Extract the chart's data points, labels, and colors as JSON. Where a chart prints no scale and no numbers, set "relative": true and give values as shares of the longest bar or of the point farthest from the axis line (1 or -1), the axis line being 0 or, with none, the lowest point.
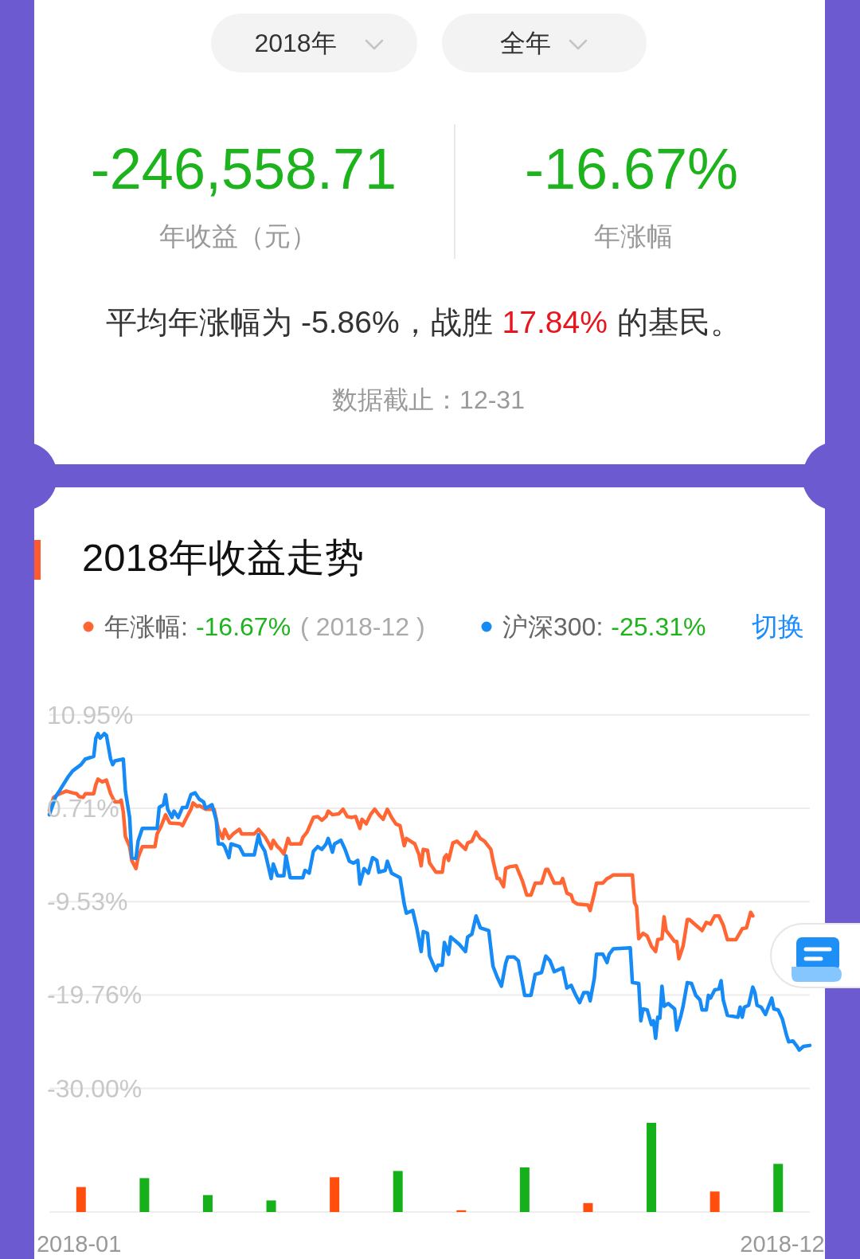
{
  "chart_data": [
    {
      "type": "other",
      "annotations": [
        "2018年",
        "全年",
        "-246,558.71",
        "年收益（元）",
        "-16.67%",
        "年涨幅",
        "平均年涨幅为 -5.86%，战胜",
        "17.84%",
        "的基民。",
        "数据截止：12-31"
      ]
    },
    {
      "type": "line",
      "title": "2018年收益走势",
      "xlim": [
        "2018-01-02",
        "2018-12-28"
      ],
      "ylim": [
        -30,
        10.95
      ],
      "xticks": [
        {
          "value": "2018-01-16",
          "label": "2018-01"
        },
        {
          "value": "2018-12-15",
          "label": "2018-12"
        }
      ],
      "yticks": [
        {
          "value": 10.95,
          "label": "10.95%"
        },
        {
          "value": 0.71,
          "label": "0.71%"
        },
        {
          "value": -9.53,
          "label": "-9.53%"
        },
        {
          "value": -19.76,
          "label": "-19.76%"
        },
        {
          "value": -30,
          "label": "-30.00%"
        }
      ],
      "grid": "y",
      "legend": "top",
      "annotations": [
        "-16.67%",
        "( 2018-12 )",
        "-25.31%",
        "切换"
      ],
      "series": [
        {
          "name": "年涨幅:",
          "color": "#ff6634",
          "x": [
            "2018-01-02",
            "2018-01-04",
            "2018-01-06",
            "2018-01-10",
            "2018-01-13",
            "2018-01-15",
            "2018-01-16",
            "2018-01-18",
            "2018-01-19",
            "2018-01-23",
            "2018-01-24",
            "2018-01-25",
            "2018-01-27",
            "2018-01-29",
            "2018-01-31",
            "2018-02-02",
            "2018-02-04",
            "2018-02-05",
            "2018-02-06",
            "2018-02-07",
            "2018-02-09",
            "2018-02-10",
            "2018-02-12",
            "2018-02-13",
            "2018-02-15",
            "2018-02-21",
            "2018-02-22",
            "2018-02-24",
            "2018-02-26",
            "2018-02-28",
            "2018-03-05",
            "2018-03-06",
            "2018-03-08",
            "2018-03-10",
            "2018-03-11",
            "2018-03-13",
            "2018-03-14",
            "2018-03-17",
            "2018-03-21",
            "2018-03-23",
            "2018-03-25",
            "2018-03-26",
            "2018-03-28",
            "2018-03-30",
            "2018-04-02",
            "2018-04-03",
            "2018-04-09",
            "2018-04-11",
            "2018-04-14",
            "2018-04-16",
            "2018-04-17",
            "2018-04-18",
            "2018-04-20",
            "2018-04-21",
            "2018-04-23",
            "2018-04-25",
            "2018-04-26",
            "2018-05-01",
            "2018-05-02",
            "2018-05-04",
            "2018-05-07",
            "2018-05-09",
            "2018-05-11",
            "2018-05-13",
            "2018-05-14",
            "2018-05-16",
            "2018-05-19",
            "2018-05-21",
            "2018-05-23",
            "2018-05-25",
            "2018-05-27",
            "2018-05-29",
            "2018-05-30",
            "2018-06-01",
            "2018-06-03",
            "2018-06-05",
            "2018-06-07",
            "2018-06-09",
            "2018-06-11",
            "2018-06-13",
            "2018-06-15",
            "2018-06-17",
            "2018-06-19",
            "2018-06-20",
            "2018-06-22",
            "2018-06-24",
            "2018-06-26",
            "2018-06-27",
            "2018-06-28",
            "2018-06-30",
            "2018-07-01",
            "2018-07-04",
            "2018-07-07",
            "2018-07-08",
            "2018-07-09",
            "2018-07-10",
            "2018-07-12",
            "2018-07-14",
            "2018-07-18",
            "2018-07-19",
            "2018-07-21",
            "2018-07-23",
            "2018-07-25",
            "2018-07-27",
            "2018-07-30",
            "2018-07-31",
            "2018-08-02",
            "2018-08-03",
            "2018-08-05",
            "2018-08-06",
            "2018-08-08",
            "2018-08-11",
            "2018-08-14",
            "2018-08-16",
            "2018-08-18",
            "2018-08-20",
            "2018-08-23",
            "2018-08-25",
            "2018-08-26",
            "2018-08-29",
            "2018-09-01",
            "2018-09-02",
            "2018-09-04",
            "2018-09-06",
            "2018-09-07",
            "2018-09-09",
            "2018-09-14",
            "2018-09-15",
            "2018-09-17",
            "2018-09-18",
            "2018-09-21",
            "2018-09-23",
            "2018-09-24",
            "2018-09-26",
            "2018-10-05",
            "2018-10-06",
            "2018-10-07",
            "2018-10-08",
            "2018-10-10",
            "2018-10-12",
            "2018-10-14",
            "2018-10-16",
            "2018-10-17",
            "2018-10-19",
            "2018-10-20",
            "2018-10-21",
            "2018-10-23",
            "2018-10-25",
            "2018-10-26",
            "2018-10-27",
            "2018-10-29",
            "2018-10-31",
            "2018-11-01",
            "2018-11-04",
            "2018-11-07",
            "2018-11-09",
            "2018-11-11",
            "2018-11-12",
            "2018-11-13",
            "2018-11-15",
            "2018-11-17",
            "2018-11-19",
            "2018-11-23",
            "2018-11-26",
            "2018-11-28",
            "2018-11-30",
            "2018-12-01"
          ],
          "values": [
            0.5,
            1.9,
            2.2,
            2.6,
            2.4,
            2.3,
            2.0,
            1.9,
            2.3,
            2.3,
            3.3,
            3.9,
            3.6,
            3.8,
            2.3,
            1.4,
            1.4,
            1.6,
            0.3,
            -2.4,
            -3.5,
            -5.0,
            -5.9,
            -4.7,
            -3.5,
            -3.5,
            -2.1,
            -1.2,
            0.0,
            -0.9,
            -1.0,
            -1.2,
            -0.3,
            0.6,
            1.3,
            0.9,
            1.0,
            0.6,
            0.6,
            -1.6,
            -2.6,
            -1.6,
            -2.6,
            -2.1,
            -1.6,
            -2.1,
            -2.1,
            -1.6,
            -2.4,
            -3.2,
            -3.7,
            -2.8,
            -3.5,
            -3.7,
            -4.3,
            -2.6,
            -3.2,
            -3.2,
            -2.5,
            -1.9,
            -0.3,
            -0.2,
            -0.6,
            -0.2,
            0.4,
            0.0,
            0.1,
            0.6,
            -0.2,
            -0.3,
            -0.2,
            -1.5,
            -0.5,
            -1.0,
            0.0,
            0.6,
            0.0,
            -0.5,
            0.6,
            -0.3,
            -1.0,
            -1.2,
            -3.4,
            -2.6,
            -2.9,
            -3.2,
            -4.4,
            -5.6,
            -3.8,
            -3.9,
            -5.3,
            -6.3,
            -6.3,
            -4.7,
            -4.4,
            -5.0,
            -3.1,
            -2.9,
            -3.8,
            -3.1,
            -2.9,
            -1.9,
            -2.6,
            -2.9,
            -3.8,
            -5.0,
            -7.0,
            -7.0,
            -7.9,
            -5.9,
            -5.7,
            -5.6,
            -7.3,
            -8.8,
            -8.8,
            -7.5,
            -7.5,
            -6.0,
            -6.0,
            -7.5,
            -7.5,
            -7.0,
            -8.6,
            -8.8,
            -9.5,
            -9.8,
            -9.9,
            -10.5,
            -8.6,
            -7.5,
            -7.5,
            -7.0,
            -6.9,
            -6.6,
            -6.6,
            -9.6,
            -10.1,
            -13.6,
            -13.0,
            -13.3,
            -14.4,
            -15.0,
            -13.7,
            -13.6,
            -11.2,
            -12.7,
            -13.3,
            -13.9,
            -13.9,
            -15.8,
            -14.4,
            -11.5,
            -11.5,
            -12.1,
            -12.7,
            -11.8,
            -12.0,
            -11.5,
            -11.1,
            -11.1,
            -12.1,
            -13.7,
            -13.7,
            -12.5,
            -12.4,
            -10.7,
            -11.1
          ]
        },
        {
          "name": "沪深300:",
          "color": "#168bf5",
          "x": [
            "2018-01-02",
            "2018-01-05",
            "2018-01-07",
            "2018-01-11",
            "2018-01-13",
            "2018-01-17",
            "2018-01-19",
            "2018-01-23",
            "2018-01-24",
            "2018-01-25",
            "2018-01-26",
            "2018-01-28",
            "2018-01-29",
            "2018-01-31",
            "2018-02-01",
            "2018-02-02",
            "2018-02-06",
            "2018-02-07",
            "2018-02-09",
            "2018-02-10",
            "2018-02-12",
            "2018-02-13",
            "2018-02-15",
            "2018-02-22",
            "2018-02-23",
            "2018-02-25",
            "2018-02-26",
            "2018-02-27",
            "2018-03-01",
            "2018-03-02",
            "2018-03-04",
            "2018-03-06",
            "2018-03-08",
            "2018-03-10",
            "2018-03-12",
            "2018-03-14",
            "2018-03-16",
            "2018-03-17",
            "2018-03-20",
            "2018-03-22",
            "2018-03-23",
            "2018-03-25",
            "2018-03-26",
            "2018-03-28",
            "2018-03-29",
            "2018-04-02",
            "2018-04-04",
            "2018-04-09",
            "2018-04-11",
            "2018-04-12",
            "2018-04-14",
            "2018-04-17",
            "2018-04-18",
            "2018-04-20",
            "2018-04-23",
            "2018-04-24",
            "2018-04-26",
            "2018-05-02",
            "2018-05-03",
            "2018-05-05",
            "2018-05-07",
            "2018-05-09",
            "2018-05-11",
            "2018-05-13",
            "2018-05-14",
            "2018-05-16",
            "2018-05-17",
            "2018-05-20",
            "2018-05-22",
            "2018-05-24",
            "2018-05-26",
            "2018-05-28",
            "2018-05-29",
            "2018-05-31",
            "2018-06-02",
            "2018-06-04",
            "2018-06-06",
            "2018-06-07",
            "2018-06-10",
            "2018-06-11",
            "2018-06-13",
            "2018-06-17",
            "2018-06-19",
            "2018-06-20",
            "2018-06-23",
            "2018-06-25",
            "2018-06-27",
            "2018-06-28",
            "2018-06-30",
            "2018-07-01",
            "2018-07-04",
            "2018-07-05",
            "2018-07-07",
            "2018-07-08",
            "2018-07-10",
            "2018-07-11",
            "2018-07-15",
            "2018-07-18",
            "2018-07-19",
            "2018-07-21",
            "2018-07-23",
            "2018-07-25",
            "2018-07-29",
            "2018-07-31",
            "2018-08-02",
            "2018-08-04",
            "2018-08-06",
            "2018-08-07",
            "2018-08-10",
            "2018-08-12",
            "2018-08-14",
            "2018-08-15",
            "2018-08-18",
            "2018-08-20",
            "2018-08-23",
            "2018-08-25",
            "2018-08-27",
            "2018-08-29",
            "2018-09-02",
            "2018-09-04",
            "2018-09-06",
            "2018-09-08",
            "2018-09-10",
            "2018-09-12",
            "2018-09-14",
            "2018-09-15",
            "2018-09-17",
            "2018-09-18",
            "2018-09-21",
            "2018-09-23",
            "2018-09-24",
            "2018-09-26",
            "2018-10-04",
            "2018-10-05",
            "2018-10-08",
            "2018-10-09",
            "2018-10-10",
            "2018-10-12",
            "2018-10-14",
            "2018-10-15",
            "2018-10-16",
            "2018-10-17",
            "2018-10-18",
            "2018-10-19",
            "2018-10-20",
            "2018-10-22",
            "2018-10-25",
            "2018-10-26",
            "2018-10-28",
            "2018-10-29",
            "2018-10-31",
            "2018-11-02",
            "2018-11-04",
            "2018-11-06",
            "2018-11-07",
            "2018-11-09",
            "2018-11-10",
            "2018-11-11",
            "2018-11-13",
            "2018-11-15",
            "2018-11-16",
            "2018-11-17",
            "2018-11-19",
            "2018-11-24",
            "2018-11-25",
            "2018-11-26",
            "2018-11-27",
            "2018-11-29",
            "2018-12-01",
            "2018-12-02",
            "2018-12-03",
            "2018-12-05",
            "2018-12-07",
            "2018-12-10",
            "2018-12-11",
            "2018-12-13",
            "2018-12-15",
            "2018-12-17",
            "2018-12-18",
            "2018-12-20",
            "2018-12-22",
            "2018-12-23",
            "2018-12-25",
            "2018-12-28"
          ],
          "values": [
            0.0,
            2.0,
            2.7,
            4.2,
            4.8,
            5.5,
            6.1,
            6.4,
            8.4,
            8.9,
            8.4,
            8.9,
            8.7,
            6.1,
            5.5,
            5.9,
            6.1,
            2.6,
            -0.3,
            -4.7,
            -4.8,
            -2.9,
            -1.5,
            -1.5,
            0.8,
            1.1,
            2.2,
            0.6,
            -0.3,
            0.4,
            -0.3,
            0.8,
            0.8,
            2.2,
            2.4,
            1.7,
            1.4,
            0.7,
            1.1,
            -0.6,
            -3.2,
            -3.2,
            -3.5,
            -4.7,
            -3.2,
            -3.5,
            -4.4,
            -4.4,
            -2.2,
            -3.2,
            -4.0,
            -7.0,
            -5.4,
            -6.7,
            -6.7,
            -4.5,
            -6.9,
            -6.9,
            -6.1,
            -6.4,
            -4.0,
            -3.5,
            -3.8,
            -3.2,
            -2.6,
            -4.1,
            -3.2,
            -2.8,
            -3.8,
            -5.1,
            -5.3,
            -5.0,
            -7.6,
            -5.9,
            -6.4,
            -4.7,
            -5.0,
            -6.3,
            -6.1,
            -5.1,
            -6.4,
            -6.9,
            -9.8,
            -10.8,
            -10.5,
            -12.5,
            -15.0,
            -12.8,
            -13.0,
            -15.5,
            -17.1,
            -16.5,
            -16.5,
            -14.0,
            -15.3,
            -13.4,
            -14.2,
            -15.0,
            -13.4,
            -13.1,
            -11.1,
            -12.4,
            -12.7,
            -16.6,
            -17.8,
            -18.8,
            -16.3,
            -15.6,
            -15.6,
            -16.0,
            -18.5,
            -19.8,
            -19.8,
            -17.5,
            -17.3,
            -15.5,
            -16.0,
            -17.2,
            -16.8,
            -19.0,
            -18.7,
            -19.7,
            -20.6,
            -19.5,
            -19.5,
            -20.4,
            -17.9,
            -15.3,
            -15.3,
            -16.2,
            -15.3,
            -14.7,
            -14.6,
            -18.4,
            -18.5,
            -22.6,
            -21.3,
            -21.4,
            -23.0,
            -22.6,
            -24.5,
            -22.2,
            -22.3,
            -18.8,
            -21.0,
            -20.7,
            -21.3,
            -23.6,
            -22.0,
            -21.0,
            -18.4,
            -18.5,
            -19.8,
            -20.3,
            -21.4,
            -21.4,
            -19.8,
            -20.1,
            -19.2,
            -19.1,
            -18.2,
            -20.3,
            -22.0,
            -22.2,
            -21.1,
            -22.2,
            -21.1,
            -20.9,
            -18.9,
            -19.5,
            -20.9,
            -21.1,
            -21.9,
            -20.1,
            -21.3,
            -21.4,
            -22.4,
            -24.2,
            -24.9,
            -24.8,
            -25.4,
            -25.8,
            -25.4,
            -25.3
          ]
        }
      ]
    },
    {
      "type": "bar",
      "relative": true,
      "categories": [
        null,
        null,
        null,
        null,
        null,
        null,
        null,
        null,
        null,
        null,
        null,
        null
      ],
      "values": [
        0.28,
        0.38,
        0.19,
        0.13,
        0.39,
        0.46,
        0.02,
        0.5,
        0.1,
        1,
        0.23,
        0.54
      ],
      "colors": [
        "#ff4e0e",
        "#16b01b",
        "#16b01b",
        "#16b01b",
        "#ff4e0e",
        "#16b01b",
        "#ff4e0e",
        "#16b01b",
        "#ff4e0e",
        "#16b01b",
        "#ff4e0e",
        "#16b01b"
      ]
    }
  ]
}
